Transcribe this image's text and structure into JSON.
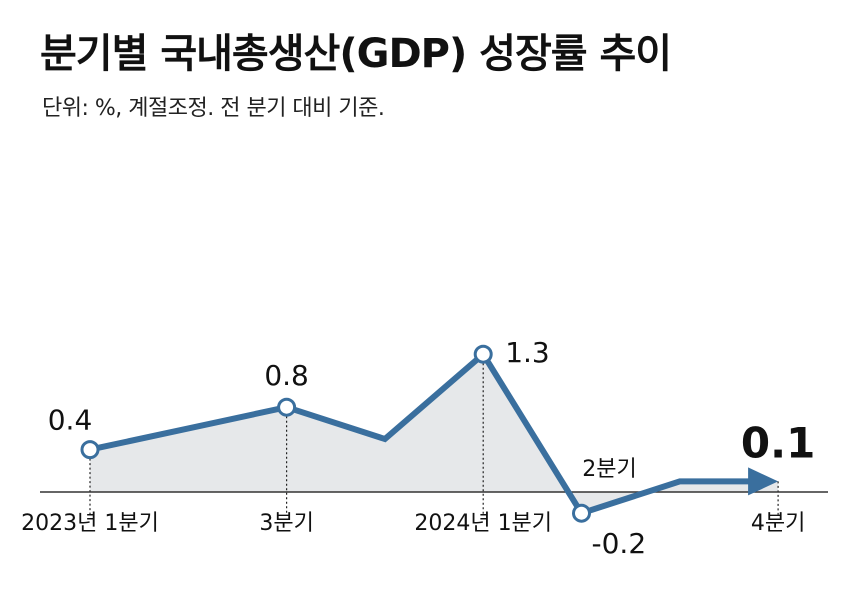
{
  "title": "분기별 국내총생산(GDP) 성장률 추이",
  "subtitle": "단위: %, 계절조정. 전 분기 대비 기준.",
  "chart_data": {
    "type": "line",
    "series": [
      {
        "points": [
          {
            "x": "2023-Q1",
            "y": 0.4,
            "label": "0.4"
          },
          {
            "x": "2023-Q2",
            "y": 0.6
          },
          {
            "x": "2023-Q3",
            "y": 0.8,
            "label": "0.8"
          },
          {
            "x": "2023-Q4",
            "y": 0.5
          },
          {
            "x": "2024-Q1",
            "y": 1.3,
            "label": "1.3"
          },
          {
            "x": "2024-Q2",
            "y": -0.2,
            "label": "-0.2"
          },
          {
            "x": "2024-Q3",
            "y": 0.1
          },
          {
            "x": "2024-Q4",
            "y": 0.1,
            "label": "0.1"
          }
        ]
      }
    ],
    "x_tick_labels": [
      {
        "x": "2023-Q1",
        "label": "2023년 1분기"
      },
      {
        "x": "2023-Q3",
        "label": "3분기"
      },
      {
        "x": "2024-Q1",
        "label": "2024년 1분기"
      },
      {
        "x": "2024-Q2",
        "label": "2분기"
      },
      {
        "x": "2024-Q4",
        "label": "4분기"
      }
    ],
    "colors": {
      "line": "#3a6f9e",
      "area": "#e6e8ea",
      "marker_fill": "#ffffff",
      "baseline": "#333333"
    },
    "grid": false,
    "legend": false,
    "final_marker": "arrow"
  }
}
